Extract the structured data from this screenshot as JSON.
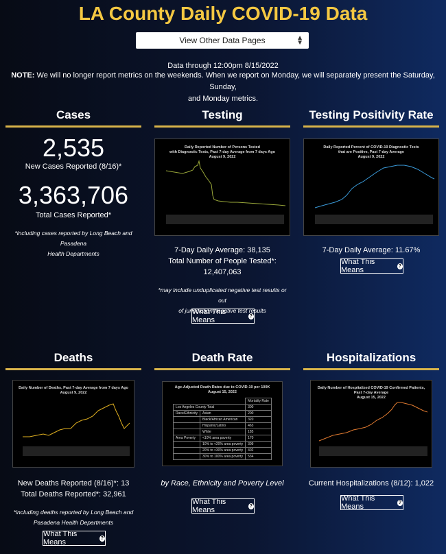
{
  "page_title": "LA County Daily COVID-19 Data",
  "nav": {
    "select_value": "View Other Data Pages"
  },
  "data_through": "Data through 12:00pm 8/15/2022",
  "note": {
    "label": "NOTE:",
    "text": " We will no longer report metrics on the weekends. When we report on Monday, we will separately present the Saturday, Sunday,",
    "text2": "and Monday metrics."
  },
  "cases": {
    "title": "Cases",
    "new_value": "2,535",
    "new_label": "New Cases Reported (8/16)*",
    "total_value": "3,363,706",
    "total_label": "Total Cases Reported*",
    "footnote1": "*including cases reported by Long Beach and Pasadena",
    "footnote2": "Health Departments"
  },
  "testing": {
    "title": "Testing",
    "chart_title1": "Daily Reported Number of Persons Tested",
    "chart_title2": "with Diagnostic Tests, Past 7-day Average from 7 days Ago",
    "chart_title3": "August 9, 2022",
    "avg": "7-Day Daily Average: 38,135",
    "total_label": "Total Number of People Tested*:",
    "total_value": "12,407,063",
    "footnote1": "*may include unduplicated negative test results or out",
    "footnote2": "of jurisdiction negative test results",
    "button": "What This Means"
  },
  "positivity": {
    "title": "Testing Positivity Rate",
    "chart_title1": "Daily Reported Percent of COVID-19 Diagnostic Tests",
    "chart_title2": "that are Positive, Past 7-day Average",
    "chart_title3": "August 9, 2022",
    "avg": "7-Day Daily Average: 11.67%",
    "button": "What This Means"
  },
  "deaths": {
    "title": "Deaths",
    "chart_title1": "Daily Number of Deaths, Past 7-day Average from 7 days Ago",
    "chart_title2": "August 9, 2022",
    "new": "New Deaths Reported (8/16)*: 13",
    "total": "Total Deaths Reported*: 32,961",
    "footnote1": "*including deaths reported by Long Beach and",
    "footnote2": "Pasadena Health Departments",
    "button": "What This Means"
  },
  "death_rate": {
    "title": "Death Rate",
    "chart_title1": "Age-Adjusted Death Rates due to COVID-19 per 100K",
    "chart_title2": "August 15, 2022",
    "table_header": "Mortality Rate",
    "rows": [
      {
        "group": "Los Angeles County Total",
        "sub": "",
        "value": "300"
      },
      {
        "group": "Race/Ethnicity",
        "sub": "Asian",
        "value": "200"
      },
      {
        "group": "",
        "sub": "Black/African American",
        "value": "320"
      },
      {
        "group": "",
        "sub": "Hispanic/Latino",
        "value": "463"
      },
      {
        "group": "",
        "sub": "White",
        "value": "185"
      },
      {
        "group": "Area Poverty",
        "sub": "<10% area poverty",
        "value": "170"
      },
      {
        "group": "",
        "sub": "10% to <20% area poverty",
        "value": "309"
      },
      {
        "group": "",
        "sub": "20% to <30% area poverty",
        "value": "402"
      },
      {
        "group": "",
        "sub": "30% to 100% area poverty",
        "value": "534"
      }
    ],
    "caption": "by Race, Ethnicity and Poverty Level",
    "button": "What This Means"
  },
  "hospital": {
    "title": "Hospitalizations",
    "chart_title1": "Daily Number of Hospitalized COVID-19 Confirmed Patients,",
    "chart_title2": "Past 7-day Average",
    "chart_title3": "August 15, 2022",
    "current": "Current Hospitalizations (8/12): 1,022",
    "button": "What This Means"
  },
  "colors": {
    "accent": "#f5c842",
    "underline": "#d9b44a",
    "testing_line": "#9aa83a",
    "positivity_line": "#3a9ad9",
    "deaths_line": "#e0b020",
    "hosp_line": "#e07a30"
  }
}
